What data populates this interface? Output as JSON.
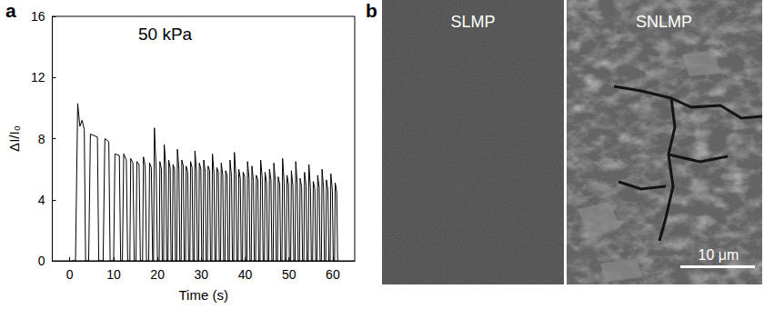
{
  "chart_data": {
    "type": "line",
    "panel": "a",
    "annotations": [
      "50 kPa"
    ],
    "xlabel": "Time (s)",
    "ylabel": "ΔI/I₀",
    "xlim": [
      -4,
      65
    ],
    "xticks": [
      0,
      10,
      20,
      30,
      40,
      50,
      60
    ],
    "ylim": [
      0,
      16
    ],
    "yticks": [
      0,
      4,
      8,
      12,
      16
    ],
    "color": "#000000",
    "grid": false,
    "x": [
      0.5,
      1.3,
      1.8,
      2.3,
      2.8,
      3.3,
      3.6,
      4.3,
      4.7,
      6.3,
      6.6,
      7.6,
      8.0,
      8.9,
      9.2,
      10.0,
      10.3,
      11.3,
      11.6,
      12.0,
      12.3,
      12.9,
      13.2,
      13.7,
      13.9,
      14.4,
      14.7,
      15.1,
      15.3,
      15.8,
      16.1,
      16.6,
      16.8,
      17.2,
      17.5,
      18.0,
      18.2,
      18.6,
      18.9,
      19.1,
      19.3,
      19.7,
      20.0,
      20.4,
      20.55,
      20.9,
      21.1,
      21.4,
      21.55,
      21.9,
      22.1,
      22.4,
      22.55,
      22.9,
      23.1,
      23.4,
      23.55,
      23.9,
      24.1,
      24.4,
      24.55,
      24.9,
      25.1,
      25.4,
      25.55,
      25.9,
      26.1,
      26.4,
      26.55,
      26.9,
      27.1,
      27.4,
      27.55,
      27.9,
      28.1,
      28.4,
      28.55,
      28.9,
      29.1,
      29.4,
      29.55,
      29.9,
      30.1,
      30.4,
      30.55,
      30.9,
      31.1,
      31.4,
      31.55,
      31.9,
      32.1,
      32.4,
      32.55,
      32.9,
      33.1,
      33.4,
      33.55,
      33.9,
      34.1,
      34.4,
      34.55,
      34.9,
      35.1,
      35.4,
      35.55,
      35.9,
      36.1,
      36.4,
      36.55,
      36.9,
      37.1,
      37.4,
      37.55,
      37.9,
      38.1,
      38.4,
      38.55,
      38.9,
      39.1,
      39.4,
      39.55,
      39.9,
      40.1,
      40.4,
      40.55,
      40.9,
      41.1,
      41.4,
      41.55,
      41.9,
      42.1,
      42.4,
      42.55,
      42.9,
      43.1,
      43.4,
      43.55,
      43.9,
      44.1,
      44.4,
      44.55,
      44.9,
      45.1,
      45.4,
      45.55,
      45.9,
      46.1,
      46.4,
      46.55,
      46.9,
      47.1,
      47.4,
      47.55,
      47.9,
      48.1,
      48.4,
      48.55,
      48.9,
      49.1,
      49.4,
      49.55,
      49.9,
      50.1,
      50.4,
      50.55,
      50.9,
      51.1,
      51.4,
      51.55,
      51.9,
      52.1,
      52.4,
      52.55,
      52.9,
      53.1,
      53.4,
      53.55,
      53.9,
      54.1,
      54.4,
      54.55,
      54.9,
      55.1,
      55.4,
      55.55,
      55.9,
      56.1,
      56.4,
      56.55,
      56.9,
      57.1,
      57.4,
      57.55,
      57.9,
      58.1,
      58.4,
      58.55,
      58.9,
      59.1,
      59.4,
      59.55,
      59.9,
      60.1,
      60.4,
      60.55,
      60.9,
      61.1
    ],
    "values": [
      0,
      0,
      10.3,
      8.8,
      9.2,
      8.6,
      0,
      0,
      8.3,
      8.1,
      0,
      0,
      8.0,
      7.8,
      0,
      0,
      7.0,
      6.9,
      0,
      0,
      7.0,
      6.6,
      0,
      0,
      6.7,
      6.4,
      0,
      0,
      6.5,
      6.3,
      0,
      0,
      6.8,
      6.2,
      0,
      0,
      6.4,
      6.1,
      0,
      0,
      8.7,
      6.0,
      0,
      0,
      6.5,
      6.0,
      0,
      0,
      7.6,
      6.2,
      0,
      0,
      6.6,
      6.1,
      0,
      0,
      6.3,
      6.0,
      0,
      0,
      7.3,
      6.0,
      0,
      0,
      6.6,
      6.2,
      0,
      0,
      6.2,
      5.8,
      0,
      0,
      6.5,
      6.1,
      0,
      0,
      7.2,
      5.9,
      0,
      0,
      6.4,
      6.0,
      0,
      0,
      6.6,
      5.8,
      0,
      0,
      6.2,
      5.9,
      0,
      0,
      7.0,
      5.7,
      0,
      0,
      6.1,
      5.8,
      0,
      0,
      6.4,
      5.6,
      0,
      0,
      5.9,
      5.6,
      0,
      0,
      6.6,
      5.5,
      0,
      0,
      7.1,
      5.6,
      0,
      0,
      6.0,
      5.4,
      0,
      0,
      5.8,
      5.5,
      0,
      0,
      6.5,
      5.4,
      0,
      0,
      6.2,
      5.2,
      0,
      0,
      5.6,
      5.3,
      0,
      0,
      6.6,
      5.4,
      0,
      0,
      5.8,
      5.1,
      0,
      0,
      6.0,
      5.3,
      0,
      0,
      6.4,
      5.2,
      0,
      0,
      5.5,
      5.0,
      0,
      0,
      6.7,
      5.1,
      0,
      0,
      5.6,
      5.0,
      0,
      0,
      5.9,
      4.9,
      0,
      0,
      6.5,
      5.0,
      0,
      0,
      5.4,
      4.8,
      0,
      0,
      5.8,
      4.9,
      0,
      0,
      6.3,
      4.8,
      0,
      0,
      5.2,
      4.7,
      0,
      0,
      5.6,
      4.8,
      0,
      0,
      6.0,
      4.7,
      0,
      0,
      5.3,
      4.6,
      0,
      0,
      5.7,
      4.6,
      0,
      0,
      5.1,
      4.5,
      0
    ]
  },
  "images": {
    "panel": "b",
    "items": [
      {
        "label": "SLMP"
      },
      {
        "label": "SNLMP"
      }
    ],
    "scale_bar": "10 μm"
  }
}
